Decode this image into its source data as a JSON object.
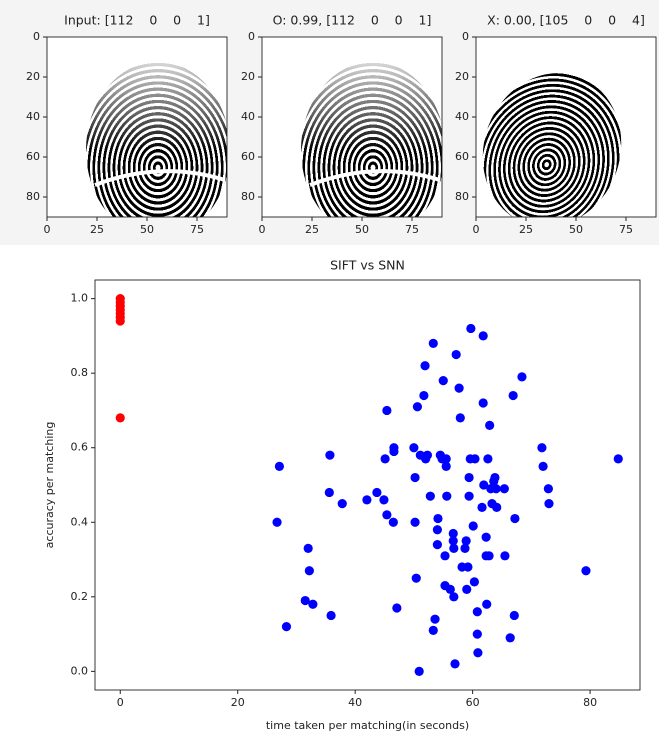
{
  "chart_data": [
    {
      "type": "image",
      "title": "Input: [112    0    0    1]",
      "xlim": [
        0,
        90
      ],
      "ylim": [
        90,
        0
      ],
      "xticks": [
        0,
        25,
        50,
        75
      ],
      "yticks": [
        0,
        20,
        40,
        60,
        80
      ]
    },
    {
      "type": "image",
      "title": "O: 0.99, [112    0    0    1]",
      "xlim": [
        0,
        90
      ],
      "ylim": [
        90,
        0
      ],
      "xticks": [
        0,
        25,
        50,
        75
      ],
      "yticks": [
        0,
        20,
        40,
        60,
        80
      ]
    },
    {
      "type": "image",
      "title": "X: 0.00, [105    0    0    4]",
      "xlim": [
        0,
        90
      ],
      "ylim": [
        90,
        0
      ],
      "xticks": [
        0,
        25,
        50,
        75
      ],
      "yticks": [
        0,
        20,
        40,
        60,
        80
      ]
    },
    {
      "type": "scatter",
      "title": "SIFT vs SNN",
      "x_label": "time taken per matching(in seconds)",
      "y_label": "accuracy per matching",
      "xlim": [
        -4.3,
        88.5
      ],
      "ylim": [
        -0.05,
        1.05
      ],
      "xticks": [
        0,
        20,
        40,
        60,
        80
      ],
      "yticks": [
        {
          "value": 0,
          "label": "0.0"
        },
        0.2,
        0.4,
        0.6,
        0.8,
        {
          "value": 1,
          "label": "1.0"
        }
      ],
      "series": [
        {
          "color": "#ff0000",
          "x": [
            0,
            0,
            0,
            0,
            0,
            0,
            0,
            0
          ],
          "values": [
            1.0,
            0.99,
            0.98,
            0.97,
            0.96,
            0.95,
            0.94,
            0.68
          ]
        },
        {
          "color": "#0000ff",
          "x": [
            27.1,
            26.7,
            28.3,
            31.5,
            32.0,
            32.2,
            32.8,
            35.6,
            35.7,
            35.9,
            37.8,
            42.0,
            43.7,
            44.9,
            45.1,
            45.4,
            45.4,
            46.5,
            46.6,
            46.6,
            47.1,
            50.0,
            50.2,
            50.2,
            50.4,
            50.6,
            50.9,
            51.1,
            51.7,
            51.9,
            52.0,
            52.3,
            52.8,
            53.3,
            53.3,
            53.6,
            54.0,
            54.0,
            54.1,
            54.5,
            54.8,
            55.0,
            55.3,
            55.3,
            55.5,
            55.5,
            55.6,
            56.2,
            56.7,
            56.7,
            56.8,
            56.8,
            57.0,
            57.2,
            57.7,
            57.9,
            58.2,
            58.7,
            58.9,
            59.0,
            59.2,
            59.4,
            59.4,
            59.6,
            59.7,
            60.1,
            60.3,
            60.4,
            60.8,
            60.8,
            60.9,
            61.6,
            61.8,
            61.8,
            61.9,
            62.3,
            62.3,
            62.4,
            62.6,
            62.8,
            62.9,
            63.1,
            63.3,
            63.6,
            63.8,
            64.0,
            64.1,
            65.4,
            65.5,
            66.4,
            66.9,
            67.1,
            67.2,
            68.4,
            71.8,
            72.0,
            72.9,
            73.0,
            79.3,
            84.8
          ],
          "values": [
            0.55,
            0.4,
            0.12,
            0.19,
            0.33,
            0.27,
            0.18,
            0.48,
            0.58,
            0.15,
            0.45,
            0.46,
            0.48,
            0.46,
            0.57,
            0.7,
            0.42,
            0.4,
            0.59,
            0.6,
            0.17,
            0.6,
            0.4,
            0.52,
            0.25,
            0.71,
            0.0,
            0.58,
            0.74,
            0.82,
            0.57,
            0.58,
            0.47,
            0.88,
            0.11,
            0.14,
            0.38,
            0.34,
            0.41,
            0.58,
            0.57,
            0.78,
            0.23,
            0.31,
            0.55,
            0.57,
            0.47,
            0.22,
            0.35,
            0.37,
            0.33,
            0.2,
            0.02,
            0.85,
            0.76,
            0.68,
            0.28,
            0.33,
            0.35,
            0.22,
            0.28,
            0.52,
            0.47,
            0.57,
            0.92,
            0.39,
            0.24,
            0.57,
            0.16,
            0.1,
            0.05,
            0.44,
            0.9,
            0.72,
            0.5,
            0.36,
            0.31,
            0.18,
            0.57,
            0.31,
            0.66,
            0.49,
            0.45,
            0.51,
            0.52,
            0.49,
            0.44,
            0.49,
            0.31,
            0.09,
            0.74,
            0.15,
            0.41,
            0.79,
            0.6,
            0.55,
            0.49,
            0.45,
            0.27,
            0.57
          ]
        }
      ]
    }
  ]
}
